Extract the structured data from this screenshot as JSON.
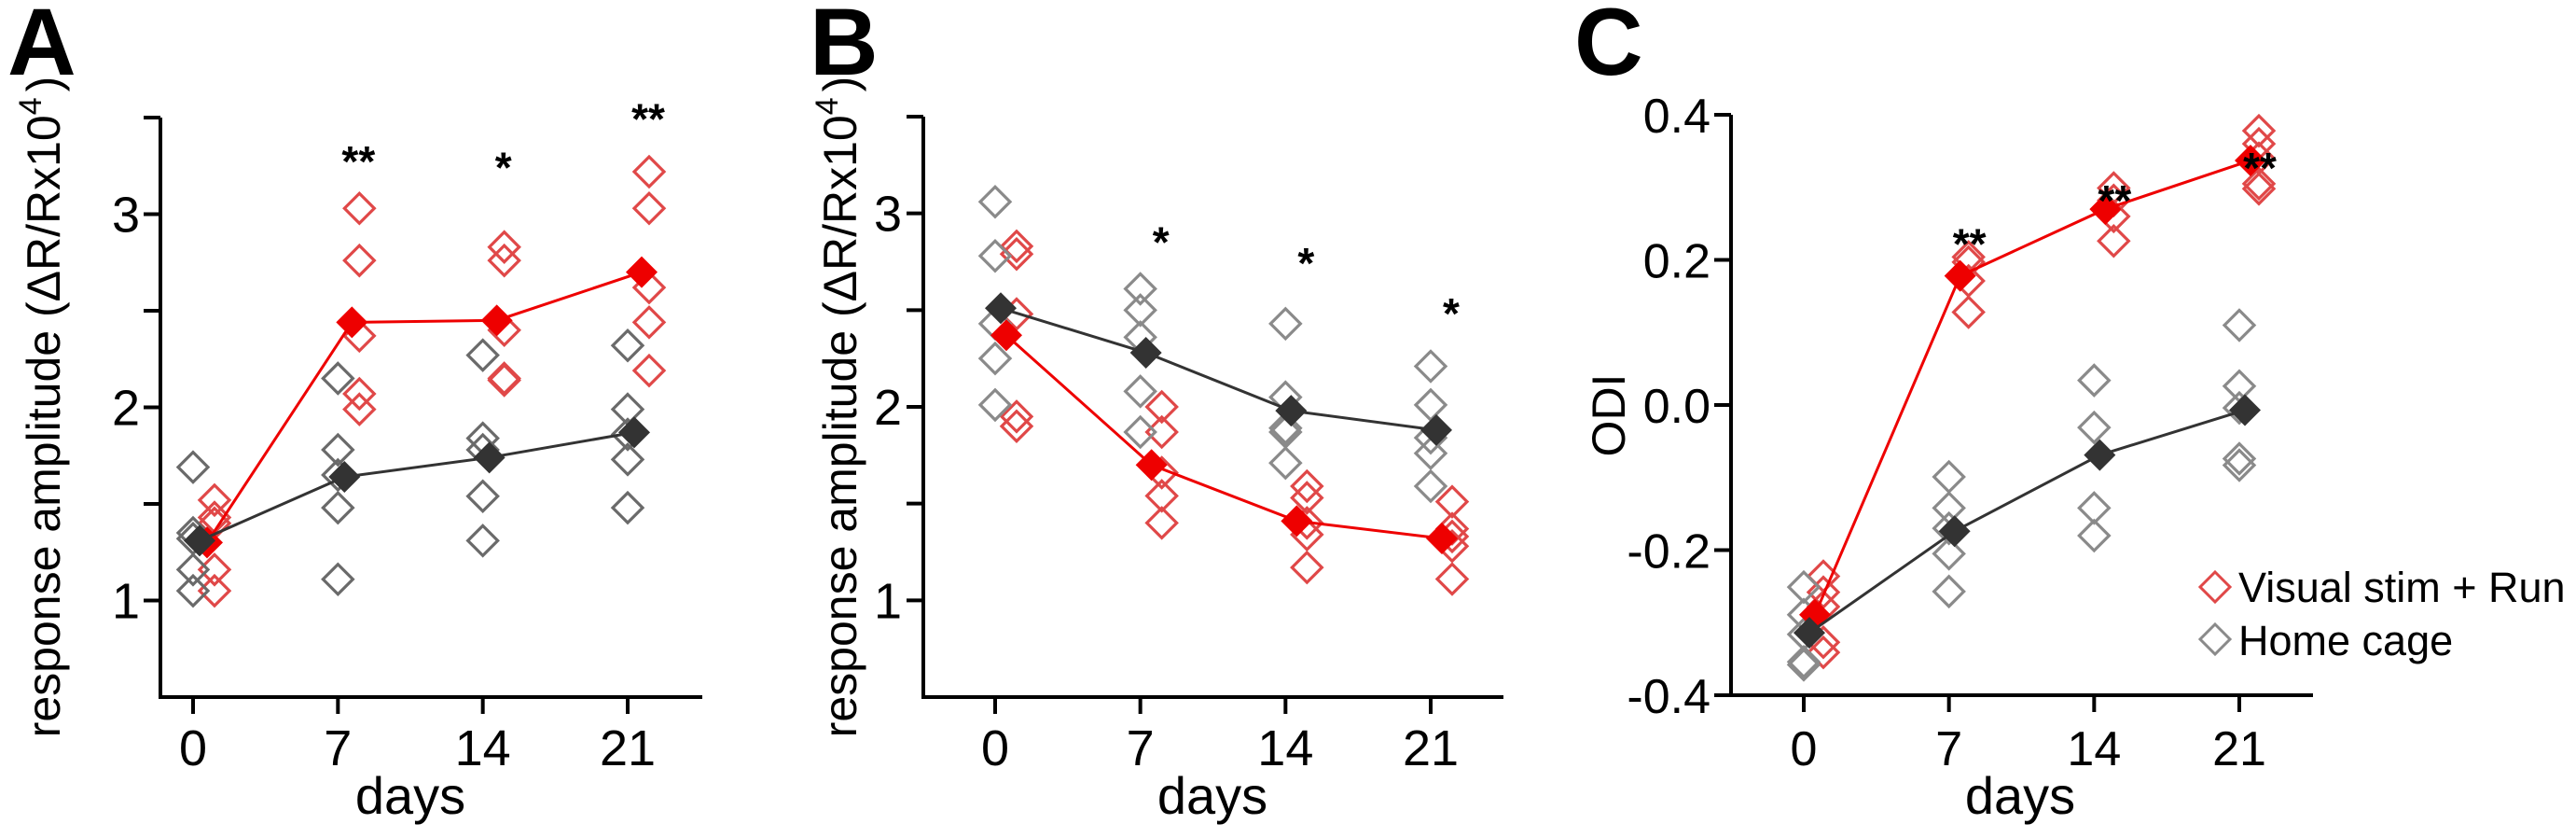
{
  "colors": {
    "treatment_hollow": "#e04848",
    "treatment_mean": "#ee0000",
    "control_hollow": "#6a6a6a",
    "control_hollow_c": "#8a8a8a",
    "control_mean": "#333333",
    "axis": "#000000"
  },
  "legend": {
    "items": [
      {
        "label": "Visual stim + Run",
        "series": "treatment"
      },
      {
        "label": "Home cage",
        "series": "control"
      }
    ]
  },
  "chart_data": [
    {
      "panel": "A",
      "type": "scatter",
      "title": "",
      "xlabel": "days",
      "ylabel": "response amplitude (ΔR/Rx10",
      "ylabel_sup": "4",
      "ylabel_close": ")",
      "x_ticks": [
        0,
        7,
        14,
        21
      ],
      "x_tick_labels": [
        "0",
        "7",
        "14",
        "21"
      ],
      "y_ticks": [
        1,
        1.5,
        2,
        2.5,
        3
      ],
      "y_tick_labels": {
        "1": "1",
        "2": "2",
        "3": "3"
      },
      "xlim": [
        -1.6,
        24.6
      ],
      "ylim": [
        0.5,
        3.5
      ],
      "grid": false,
      "significance": [
        {
          "day": 7,
          "label": "**",
          "y": 3.34
        },
        {
          "day": 14,
          "label": "*",
          "y": 3.31
        },
        {
          "day": 21,
          "label": "**",
          "y": 3.56
        }
      ],
      "series": [
        {
          "name": "Visual stim + Run",
          "key": "treatment",
          "days": [
            0,
            7,
            14,
            21
          ],
          "mean": [
            1.3,
            2.44,
            2.45,
            2.7
          ],
          "individual": [
            [
              1.52,
              1.43,
              1.4,
              1.16,
              1.05
            ],
            [
              3.03,
              2.76,
              2.37,
              2.07,
              1.99
            ],
            [
              2.83,
              2.76,
              2.4,
              2.15,
              2.14
            ],
            [
              3.22,
              3.03,
              2.62,
              2.44,
              2.19
            ]
          ]
        },
        {
          "name": "Home cage",
          "key": "control",
          "days": [
            0,
            7,
            14,
            21
          ],
          "mean": [
            1.31,
            1.64,
            1.74,
            1.87
          ],
          "individual": [
            [
              1.69,
              1.35,
              1.32,
              1.16,
              1.05
            ],
            [
              2.15,
              1.78,
              1.65,
              1.48,
              1.11
            ],
            [
              2.27,
              1.84,
              1.78,
              1.54,
              1.31
            ],
            [
              2.32,
              1.99,
              1.86,
              1.73,
              1.48
            ]
          ]
        }
      ]
    },
    {
      "panel": "B",
      "type": "scatter",
      "title": "",
      "xlabel": "days",
      "ylabel": "response amplitude (ΔR/Rx10",
      "ylabel_sup": "4",
      "ylabel_close": ")",
      "x_ticks": [
        0,
        7,
        14,
        21
      ],
      "x_tick_labels": [
        "0",
        "7",
        "14",
        "21"
      ],
      "y_ticks": [
        1,
        1.5,
        2,
        2.5,
        3
      ],
      "y_tick_labels": {
        "1": "1",
        "2": "2",
        "3": "3"
      },
      "xlim": [
        -1.6,
        24.6
      ],
      "ylim": [
        0.5,
        3.5
      ],
      "grid": false,
      "significance": [
        {
          "day": 7,
          "label": "*",
          "y": 2.92
        },
        {
          "day": 14,
          "label": "*",
          "y": 2.81
        },
        {
          "day": 21,
          "label": "*",
          "y": 2.55
        }
      ],
      "series": [
        {
          "name": "Visual stim + Run",
          "key": "treatment",
          "days": [
            0,
            7,
            14,
            21
          ],
          "mean": [
            2.37,
            1.7,
            1.41,
            1.32
          ],
          "individual": [
            [
              2.83,
              2.79,
              2.48,
              1.95,
              1.9
            ],
            [
              2.0,
              1.87,
              1.66,
              1.54,
              1.4
            ],
            [
              1.59,
              1.53,
              1.4,
              1.34,
              1.17
            ],
            [
              1.51,
              1.37,
              1.33,
              1.28,
              1.11
            ]
          ]
        },
        {
          "name": "Home cage",
          "key": "control",
          "days": [
            0,
            7,
            14,
            21
          ],
          "mean": [
            2.51,
            2.28,
            1.98,
            1.88
          ],
          "individual": [
            [
              3.06,
              2.78,
              2.43,
              2.25,
              2.01
            ],
            [
              2.61,
              2.5,
              2.36,
              2.08,
              1.87
            ],
            [
              2.43,
              2.05,
              1.89,
              1.87,
              1.71
            ],
            [
              2.21,
              2.01,
              1.84,
              1.76,
              1.59
            ]
          ]
        }
      ]
    },
    {
      "panel": "C",
      "type": "scatter",
      "title": "",
      "xlabel": "days",
      "ylabel": "ODI",
      "x_ticks": [
        0,
        7,
        14,
        21
      ],
      "x_tick_labels": [
        "0",
        "7",
        "14",
        "21"
      ],
      "y_ticks": [
        -0.4,
        -0.2,
        0.0,
        0.2,
        0.4
      ],
      "y_tick_labels": {
        "-0.4": "-0.4",
        "-0.2": "-0.2",
        "0": "0.0",
        "0.2": "0.2",
        "0.4": "0.4"
      },
      "xlim": [
        -3.5,
        24.55
      ],
      "ylim": [
        -0.4,
        0.4
      ],
      "grid": false,
      "legend_position": "bottom-right",
      "significance": [
        {
          "day": 7,
          "label": "**",
          "y": 0.24
        },
        {
          "day": 14,
          "label": "**",
          "y": 0.3
        },
        {
          "day": 21,
          "label": "**",
          "y": 0.345
        }
      ],
      "series": [
        {
          "name": "Visual stim + Run",
          "key": "treatment",
          "days": [
            0,
            7,
            14,
            21
          ],
          "mean": [
            -0.289,
            0.178,
            0.27,
            0.337
          ],
          "individual": [
            [
              -0.236,
              -0.258,
              -0.278,
              -0.327,
              -0.341
            ],
            [
              0.204,
              0.197,
              0.171,
              0.128
            ],
            [
              0.299,
              0.282,
              0.26,
              0.226
            ],
            [
              0.378,
              0.36,
              0.34,
              0.305,
              0.298
            ]
          ]
        },
        {
          "name": "Home cage",
          "key": "control",
          "days": [
            0,
            7,
            14,
            21
          ],
          "mean": [
            -0.314,
            -0.174,
            -0.069,
            -0.007
          ],
          "individual": [
            [
              -0.251,
              -0.289,
              -0.316,
              -0.354,
              -0.358
            ],
            [
              -0.099,
              -0.142,
              -0.17,
              -0.205,
              -0.257
            ],
            [
              0.034,
              -0.031,
              -0.142,
              -0.18
            ],
            [
              0.11,
              0.026,
              -0.004,
              -0.074,
              -0.083
            ]
          ]
        }
      ]
    }
  ]
}
